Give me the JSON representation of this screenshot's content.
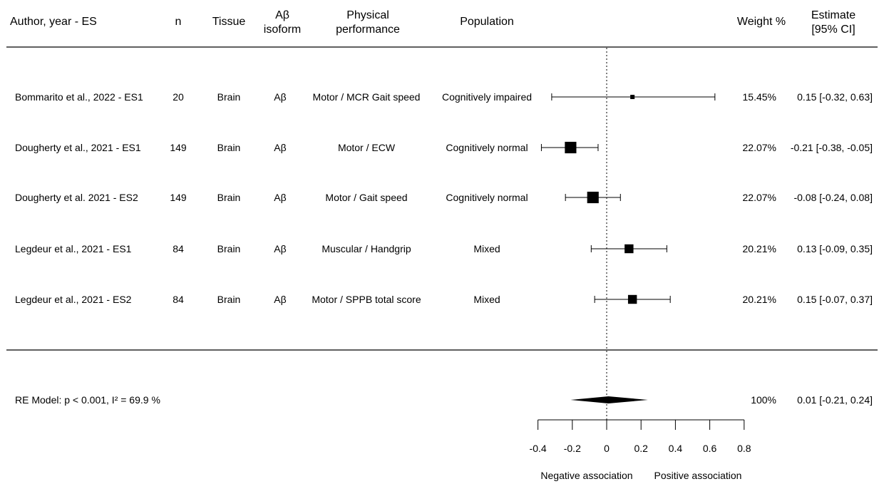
{
  "headers": {
    "author": "Author, year - ES",
    "n": "n",
    "tissue": "Tissue",
    "isoform_line1": "Aβ",
    "isoform_line2": "isoform",
    "physical_line1": "Physical",
    "physical_line2": "performance",
    "population": "Population",
    "weight": "Weight %",
    "estimate_line1": "Estimate",
    "estimate_line2": "[95% CI]"
  },
  "chart_data": {
    "type": "forest",
    "xlim": [
      -0.4,
      0.8
    ],
    "x_ticks": [
      -0.4,
      -0.2,
      0,
      0.2,
      0.4,
      0.6,
      0.8
    ],
    "x_tick_labels": [
      "-0.4",
      "-0.2",
      "0",
      "0.2",
      "0.4",
      "0.6",
      "0.8"
    ],
    "reference_line": 0,
    "xlabel_left": "Negative association",
    "xlabel_right": "Positive association",
    "studies": [
      {
        "author": "Bommarito et al., 2022 - ES1",
        "n": "20",
        "tissue": "Brain",
        "isoform": "Aβ",
        "performance": "Motor / MCR Gait speed",
        "population": "Cognitively impaired",
        "estimate": 0.15,
        "lower": -0.32,
        "upper": 0.63,
        "weight": 15.45,
        "weight_label": "15.45%",
        "estimate_label": "0.15 [-0.32,  0.63]"
      },
      {
        "author": "Dougherty et al., 2021 - ES1",
        "n": "149",
        "tissue": "Brain",
        "isoform": "Aβ",
        "performance": "Motor / ECW",
        "population": "Cognitively normal",
        "estimate": -0.21,
        "lower": -0.38,
        "upper": -0.05,
        "weight": 22.07,
        "weight_label": "22.07%",
        "estimate_label": "-0.21 [-0.38, -0.05]"
      },
      {
        "author": "Dougherty et al.  2021 - ES2",
        "n": "149",
        "tissue": "Brain",
        "isoform": "Aβ",
        "performance": "Motor / Gait speed",
        "population": "Cognitively normal",
        "estimate": -0.08,
        "lower": -0.24,
        "upper": 0.08,
        "weight": 22.07,
        "weight_label": "22.07%",
        "estimate_label": "-0.08 [-0.24,  0.08]"
      },
      {
        "author": "Legdeur et al., 2021 - ES1",
        "n": "84",
        "tissue": "Brain",
        "isoform": "Aβ",
        "performance": "Muscular / Handgrip",
        "population": "Mixed",
        "estimate": 0.13,
        "lower": -0.09,
        "upper": 0.35,
        "weight": 20.21,
        "weight_label": "20.21%",
        "estimate_label": "0.13 [-0.09,  0.35]"
      },
      {
        "author": "Legdeur et al., 2021 - ES2",
        "n": "84",
        "tissue": "Brain",
        "isoform": "Aβ",
        "performance": "Motor / SPPB total score",
        "population": "Mixed",
        "estimate": 0.15,
        "lower": -0.07,
        "upper": 0.37,
        "weight": 20.21,
        "weight_label": "20.21%",
        "estimate_label": "0.15 [-0.07,  0.37]"
      }
    ],
    "summary": {
      "label": "RE Model: p < 0.001, I² = 69.9 %",
      "estimate": 0.01,
      "lower": -0.21,
      "upper": 0.24,
      "weight_label": "100%",
      "estimate_label": "0.01 [-0.21,  0.24]"
    }
  }
}
